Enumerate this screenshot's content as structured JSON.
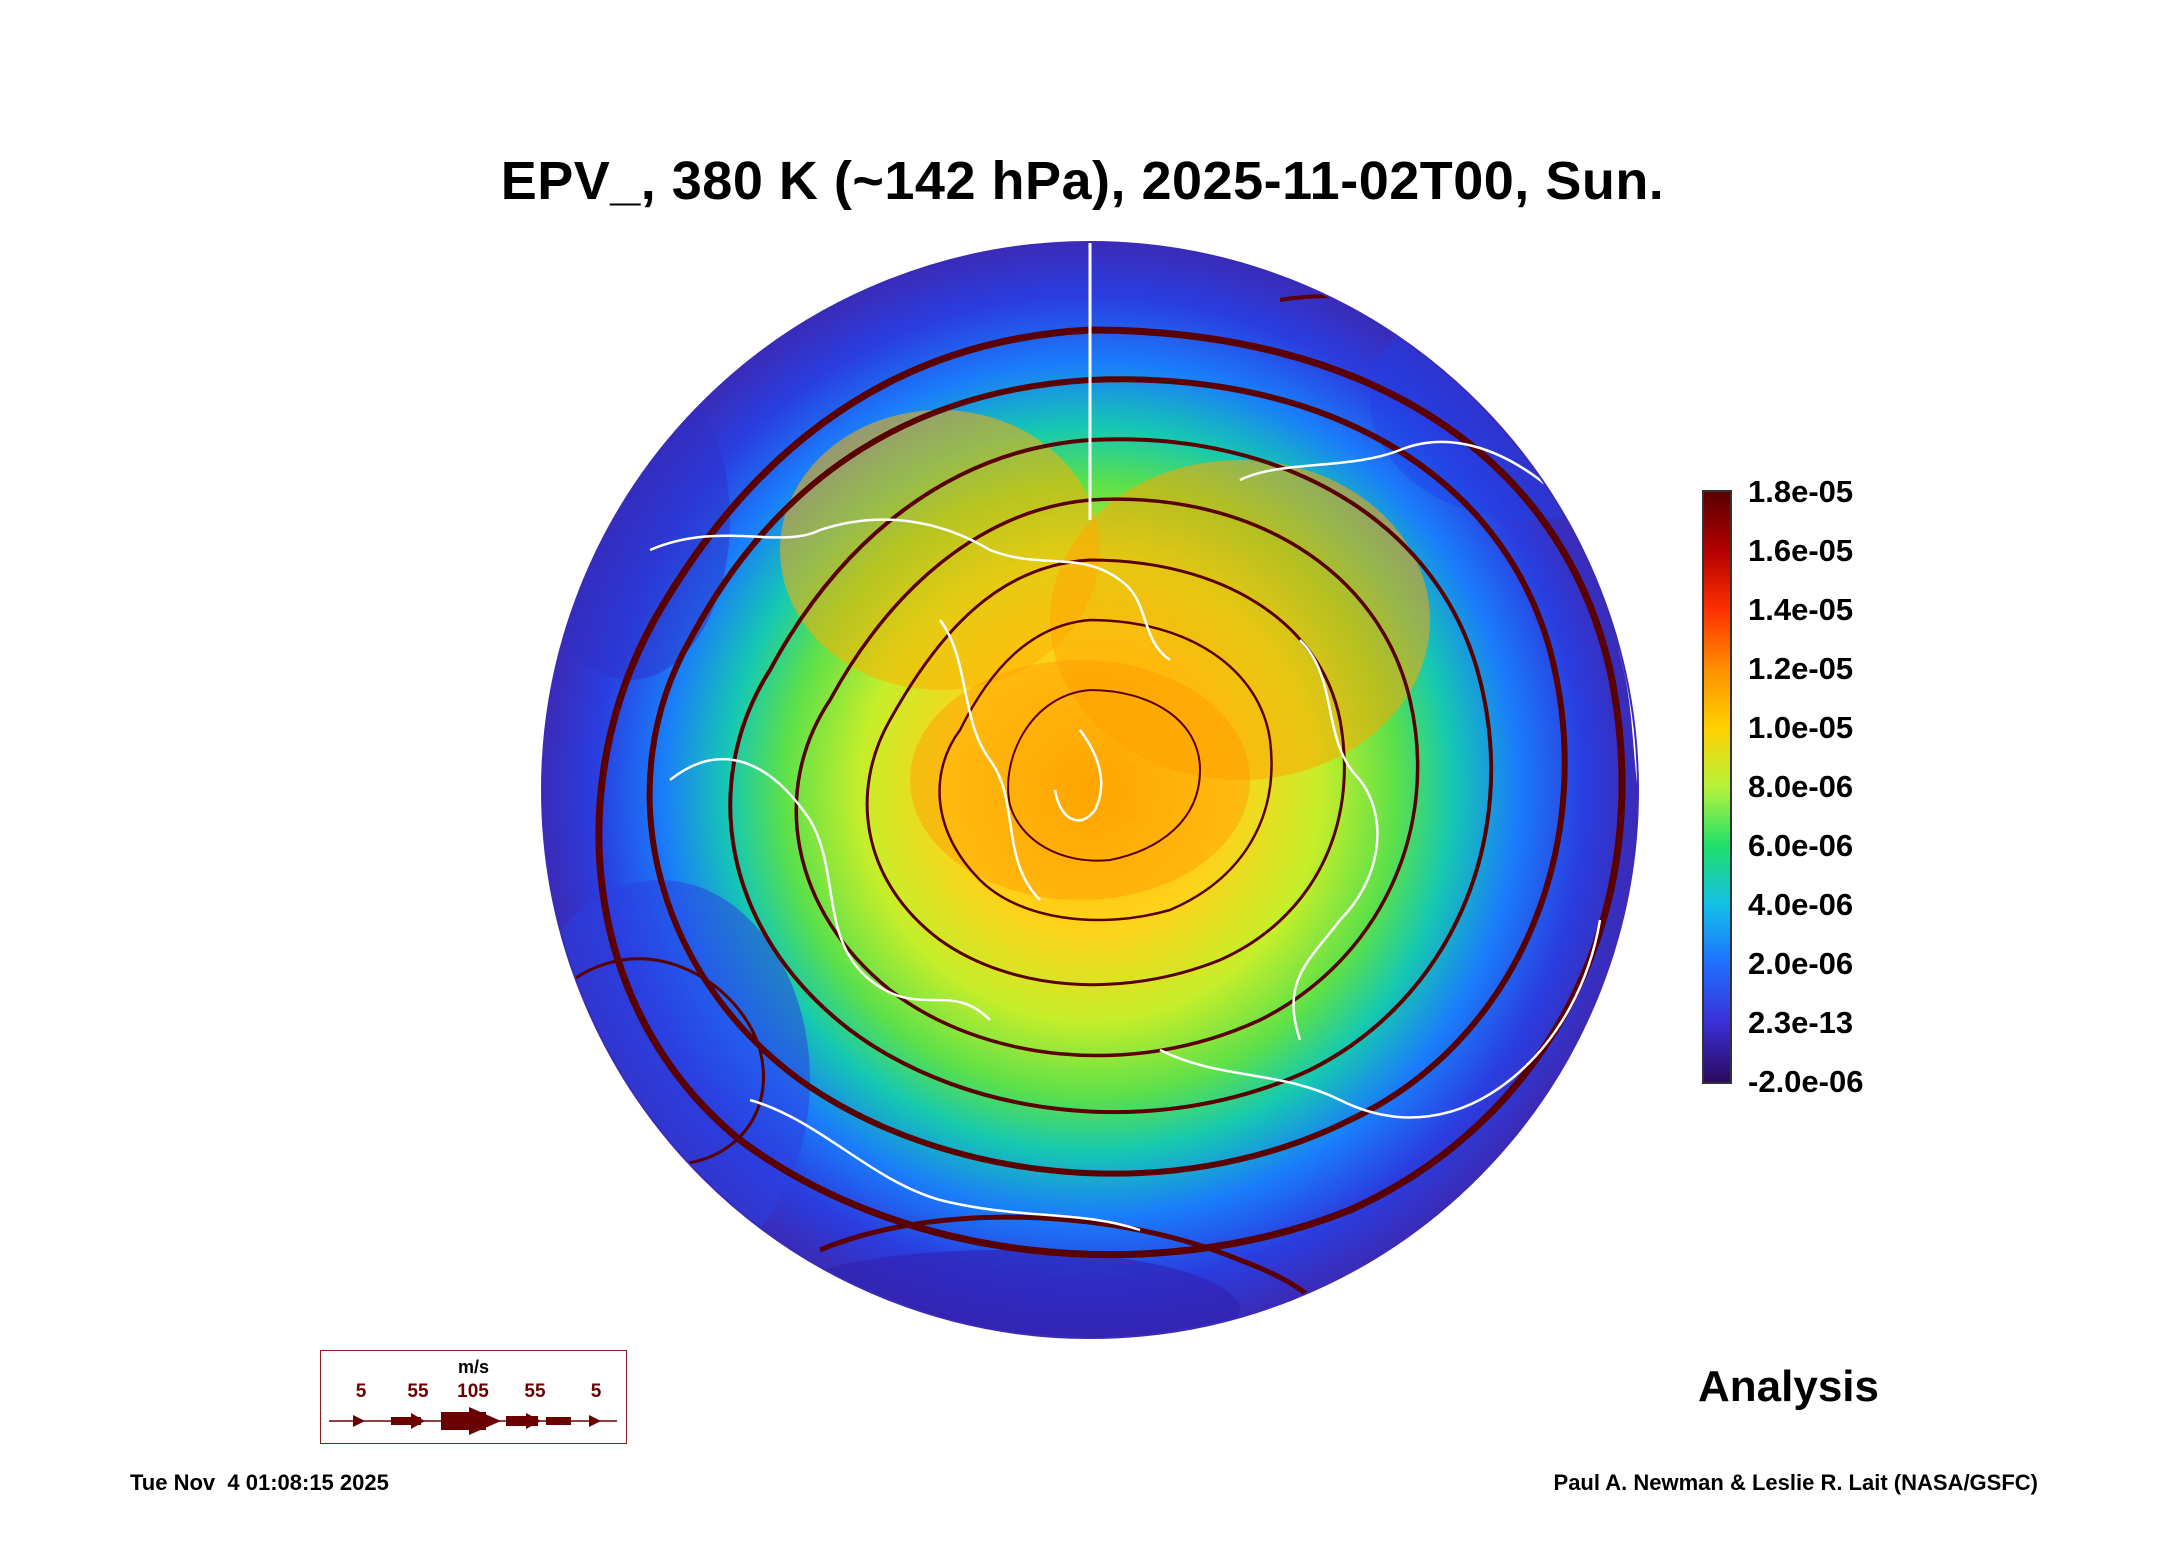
{
  "title": "EPV_, 380 K (~142 hPa), 2025-11-02T00, Sun.",
  "colorbar": {
    "labels": [
      "1.8e-05",
      "1.6e-05",
      "1.4e-05",
      "1.2e-05",
      "1.0e-05",
      "8.0e-06",
      "6.0e-06",
      "4.0e-06",
      "2.0e-06",
      "2.3e-13",
      "-2.0e-06"
    ],
    "colors": [
      "#2a0a5e",
      "#3b2fd6",
      "#1f6fff",
      "#13c0e8",
      "#1ee06a",
      "#b6f23a",
      "#ffd000",
      "#ff9000",
      "#ff3000",
      "#b30000",
      "#5a0000"
    ]
  },
  "analysis_label": "Analysis",
  "wind_legend": {
    "unit": "m/s",
    "values": [
      "5",
      "55",
      "105",
      "55",
      "5"
    ]
  },
  "footer": {
    "timestamp": "Tue Nov  4 01:08:15 2025",
    "credit": "Paul A. Newman & Leslie R. Lait (NASA/GSFC)"
  },
  "style": {
    "streamline_color": "#5a0000",
    "coastline_color": "#ffffff"
  }
}
